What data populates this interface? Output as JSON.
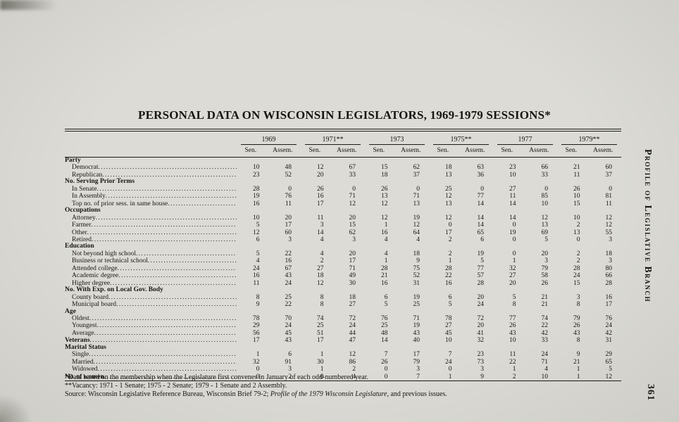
{
  "page": {
    "title": "PERSONAL DATA ON WISCONSIN LEGISLATORS, 1969-1979 SESSIONS*",
    "side_text": "Profile of Legislative Branch",
    "page_number": "361"
  },
  "table": {
    "years": [
      "1969",
      "1971**",
      "1973",
      "1975**",
      "1977",
      "1979**"
    ],
    "subheaders": [
      "Sen.",
      "Assem."
    ],
    "rows": [
      {
        "label": "Party",
        "type": "section"
      },
      {
        "label": "Democrat",
        "type": "data",
        "values": [
          "10",
          "48",
          "12",
          "67",
          "15",
          "62",
          "18",
          "63",
          "23",
          "66",
          "21",
          "60"
        ]
      },
      {
        "label": "Republican",
        "type": "data",
        "values": [
          "23",
          "52",
          "20",
          "33",
          "18",
          "37",
          "13",
          "36",
          "10",
          "33",
          "11",
          "37"
        ]
      },
      {
        "label": "No. Serving Prior Terms",
        "type": "section"
      },
      {
        "label": "In Senate",
        "type": "data",
        "values": [
          "28",
          "0",
          "26",
          "0",
          "26",
          "0",
          "25",
          "0",
          "27",
          "0",
          "26",
          "0"
        ]
      },
      {
        "label": "In Assembly",
        "type": "data",
        "values": [
          "19",
          "76",
          "16",
          "71",
          "13",
          "71",
          "12",
          "77",
          "11",
          "85",
          "10",
          "81"
        ]
      },
      {
        "label": "Top no. of prior sess. in same house",
        "type": "data",
        "values": [
          "16",
          "11",
          "17",
          "12",
          "12",
          "13",
          "13",
          "14",
          "14",
          "10",
          "15",
          "11"
        ]
      },
      {
        "label": "Occupations",
        "type": "section"
      },
      {
        "label": "Attorney",
        "type": "data",
        "values": [
          "10",
          "20",
          "11",
          "20",
          "12",
          "19",
          "12",
          "14",
          "14",
          "12",
          "10",
          "12"
        ]
      },
      {
        "label": "Farmer",
        "type": "data",
        "values": [
          "5",
          "17",
          "3",
          "15",
          "1",
          "12",
          "0",
          "14",
          "0",
          "13",
          "2",
          "12"
        ]
      },
      {
        "label": "Other",
        "type": "data",
        "values": [
          "12",
          "60",
          "14",
          "62",
          "16",
          "64",
          "17",
          "65",
          "19",
          "69",
          "13",
          "55"
        ]
      },
      {
        "label": "Retired",
        "type": "data",
        "values": [
          "6",
          "3",
          "4",
          "3",
          "4",
          "4",
          "2",
          "6",
          "0",
          "5",
          "0",
          "3"
        ]
      },
      {
        "label": "Education",
        "type": "section"
      },
      {
        "label": "Not beyond high school",
        "type": "data",
        "values": [
          "5",
          "22",
          "4",
          "20",
          "4",
          "18",
          "2",
          "19",
          "0",
          "20",
          "2",
          "18"
        ]
      },
      {
        "label": "Business or technical school",
        "type": "data",
        "values": [
          "4",
          "16",
          "2",
          "17",
          "1",
          "9",
          "1",
          "5",
          "1",
          "3",
          "2",
          "3"
        ]
      },
      {
        "label": "Attended college",
        "type": "data",
        "values": [
          "24",
          "67",
          "27",
          "71",
          "28",
          "75",
          "28",
          "77",
          "32",
          "79",
          "28",
          "80"
        ]
      },
      {
        "label": "Academic degree",
        "type": "data",
        "values": [
          "16",
          "43",
          "18",
          "49",
          "21",
          "52",
          "22",
          "57",
          "27",
          "58",
          "24",
          "66"
        ]
      },
      {
        "label": "Higher degree",
        "type": "data",
        "values": [
          "11",
          "24",
          "12",
          "30",
          "16",
          "31",
          "16",
          "28",
          "20",
          "26",
          "15",
          "28"
        ]
      },
      {
        "label": "No. With Exp. on Local Gov. Body",
        "type": "section"
      },
      {
        "label": "County board",
        "type": "data",
        "values": [
          "8",
          "25",
          "8",
          "18",
          "6",
          "19",
          "6",
          "20",
          "5",
          "21",
          "3",
          "16"
        ]
      },
      {
        "label": "Municipal board",
        "type": "data",
        "values": [
          "9",
          "22",
          "8",
          "27",
          "5",
          "25",
          "5",
          "24",
          "8",
          "21",
          "8",
          "17"
        ]
      },
      {
        "label": "Age",
        "type": "section"
      },
      {
        "label": "Oldest",
        "type": "data",
        "values": [
          "78",
          "70",
          "74",
          "72",
          "76",
          "71",
          "78",
          "72",
          "77",
          "74",
          "79",
          "76"
        ]
      },
      {
        "label": "Youngest",
        "type": "data",
        "values": [
          "29",
          "24",
          "25",
          "24",
          "25",
          "19",
          "27",
          "20",
          "26",
          "22",
          "26",
          "24"
        ]
      },
      {
        "label": "Average",
        "type": "data",
        "values": [
          "56",
          "45",
          "51",
          "44",
          "48",
          "43",
          "45",
          "41",
          "43",
          "42",
          "43",
          "42"
        ]
      },
      {
        "label": "Veterans",
        "type": "flush",
        "values": [
          "17",
          "43",
          "17",
          "47",
          "14",
          "40",
          "10",
          "32",
          "10",
          "33",
          "8",
          "31"
        ]
      },
      {
        "label": "Marital Status",
        "type": "section"
      },
      {
        "label": "Single",
        "type": "data",
        "values": [
          "1",
          "6",
          "1",
          "12",
          "7",
          "17",
          "7",
          "23",
          "11",
          "24",
          "9",
          "29"
        ]
      },
      {
        "label": "Married",
        "type": "data",
        "values": [
          "32",
          "91",
          "30",
          "86",
          "26",
          "79",
          "24",
          "73",
          "22",
          "71",
          "21",
          "65"
        ]
      },
      {
        "label": "Widowed",
        "type": "data",
        "values": [
          "0",
          "3",
          "1",
          "2",
          "0",
          "3",
          "0",
          "3",
          "1",
          "4",
          "1",
          "5"
        ]
      },
      {
        "label": "No. of women",
        "type": "flush",
        "values": [
          "0",
          "2",
          "0",
          "4",
          "0",
          "7",
          "1",
          "9",
          "2",
          "10",
          "1",
          "12"
        ]
      }
    ]
  },
  "footnotes": {
    "line1": "*Data based on the membership when the Legislature first convenes in January of each odd-numbered year.",
    "line2": "**Vacancy: 1971 - 1 Senate; 1975 - 2 Senate; 1979 - 1 Senate and 2 Assembly.",
    "line3_prefix": "Source: Wisconsin Legislative Reference Bureau, Wisconsin Brief 79-2; ",
    "line3_italic": "Profile of the 1979 Wisconsin Legislature",
    "line3_suffix": ", and previous issues."
  }
}
